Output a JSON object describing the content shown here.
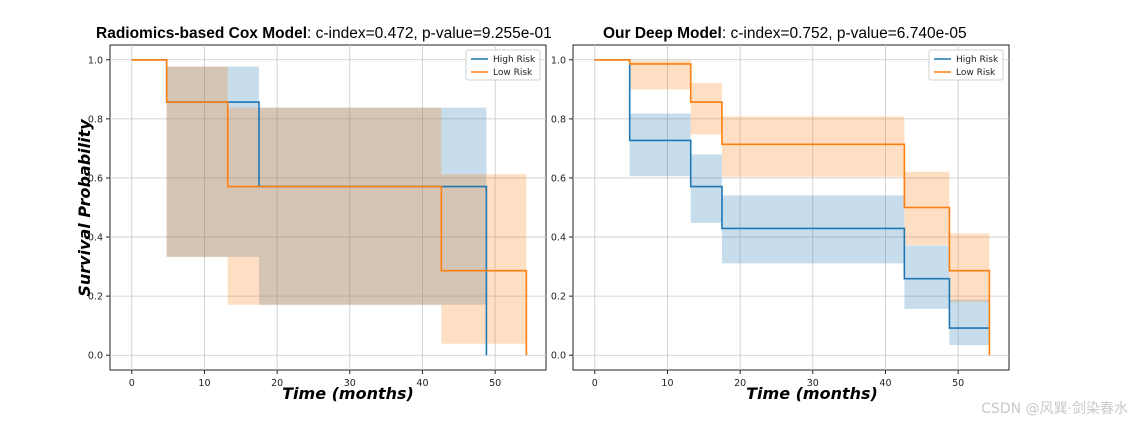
{
  "watermark": "CSDN @风巽·剑染春水",
  "colors": {
    "high": "#1f77b4",
    "low": "#ff7f0e"
  },
  "chart_data": [
    {
      "type": "line",
      "subtype": "kaplan-meier-step",
      "title_bold": "Radiomics-based Cox Model",
      "title_rest": ": c-index=0.472, p-value=9.255e-01",
      "xlabel": "Time (months)",
      "ylabel": "Survival Probability",
      "xlim": [
        -3,
        57
      ],
      "ylim": [
        -0.05,
        1.05
      ],
      "xticks": [
        0,
        10,
        20,
        30,
        40,
        50
      ],
      "yticks": [
        0.0,
        0.2,
        0.4,
        0.6,
        0.8,
        1.0
      ],
      "grid": true,
      "legend_position": "top-right",
      "series": [
        {
          "name": "High Risk",
          "color": "#1f77b4",
          "x": [
            0,
            4.8,
            17.5,
            42.6,
            48.8,
            48.8
          ],
          "y": [
            1.0,
            0.857,
            0.571,
            0.571,
            0.571,
            0.0
          ],
          "ci_x": [
            4.8,
            13.2,
            17.5,
            42.6,
            48.8
          ],
          "ci_lower": [
            0.333,
            0.333,
            0.171,
            0.171,
            0.171
          ],
          "ci_upper": [
            0.977,
            0.977,
            0.838,
            0.838,
            0.838
          ]
        },
        {
          "name": "Low Risk",
          "color": "#ff7f0e",
          "x": [
            0,
            4.8,
            13.2,
            42.6,
            54.3,
            54.3
          ],
          "y": [
            1.0,
            0.857,
            0.571,
            0.286,
            0.286,
            0.0
          ],
          "ci_x": [
            4.8,
            13.2,
            42.6,
            54.3
          ],
          "ci_lower": [
            0.333,
            0.171,
            0.039,
            0.039
          ],
          "ci_upper": [
            0.977,
            0.838,
            0.613,
            0.613
          ]
        }
      ]
    },
    {
      "type": "line",
      "subtype": "kaplan-meier-step",
      "title_bold": "Our Deep Model",
      "title_rest": ": c-index=0.752, p-value=6.740e-05",
      "xlabel": "Time (months)",
      "ylabel": "",
      "xlim": [
        -3,
        57
      ],
      "ylim": [
        -0.05,
        1.05
      ],
      "xticks": [
        0,
        10,
        20,
        30,
        40,
        50
      ],
      "yticks": [
        0.0,
        0.2,
        0.4,
        0.6,
        0.8,
        1.0
      ],
      "grid": true,
      "legend_position": "top-right",
      "series": [
        {
          "name": "High Risk",
          "color": "#1f77b4",
          "x": [
            0,
            4.8,
            13.2,
            17.5,
            42.6,
            48.8,
            54.3,
            54.3
          ],
          "y": [
            1.0,
            0.727,
            0.571,
            0.429,
            0.259,
            0.092,
            0.092,
            0.092
          ],
          "ci_x": [
            4.8,
            13.2,
            17.5,
            42.6,
            48.8,
            54.3
          ],
          "ci_lower": [
            0.606,
            0.448,
            0.311,
            0.157,
            0.034,
            0.034
          ],
          "ci_upper": [
            0.818,
            0.68,
            0.541,
            0.372,
            0.188,
            0.188
          ]
        },
        {
          "name": "Low Risk",
          "color": "#ff7f0e",
          "x": [
            0,
            4.8,
            13.2,
            17.5,
            42.6,
            48.8,
            54.3,
            54.3
          ],
          "y": [
            1.0,
            0.986,
            0.857,
            0.714,
            0.5,
            0.286,
            0.286,
            0.0
          ],
          "ci_x": [
            4.8,
            13.2,
            17.5,
            42.6,
            48.8,
            54.3
          ],
          "ci_lower": [
            0.9,
            0.747,
            0.604,
            0.373,
            0.18,
            0.18
          ],
          "ci_upper": [
            0.998,
            0.922,
            0.808,
            0.621,
            0.412,
            0.412
          ]
        }
      ]
    }
  ]
}
